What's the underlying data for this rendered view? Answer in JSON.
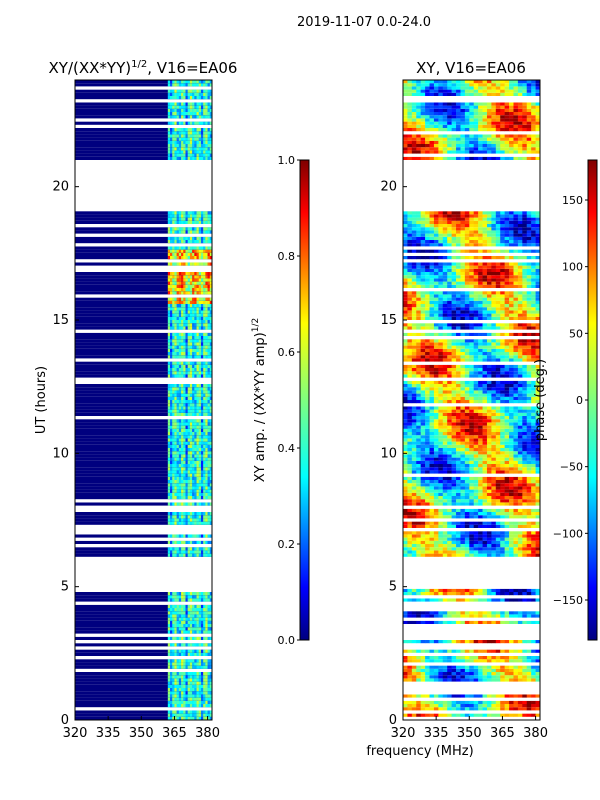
{
  "figure": {
    "suptitle": "2019-11-07 0.0-24.0",
    "common_xlabel": "frequency (MHz)"
  },
  "colors": {
    "jet": [
      "#00007f",
      "#0000ff",
      "#007fff",
      "#00ffff",
      "#7fff7f",
      "#ffff00",
      "#ff7f00",
      "#ff0000",
      "#7f0000"
    ],
    "background_band": "#00007f",
    "gap": "#ffffff"
  },
  "chart_data": [
    {
      "type": "heatmap",
      "title": "XY/(XX*YY)^1/2, V16=EA06",
      "title_main": "XY/(XX*YY)",
      "title_sup": "1/2",
      "title_tail": ", V16=EA06",
      "xlabel": "",
      "ylabel": "UT (hours)",
      "xlim": [
        320,
        382
      ],
      "ylim": [
        0,
        24
      ],
      "xticks": [
        "320",
        "335",
        "350",
        "365",
        "380"
      ],
      "yticks": [
        "0",
        "5",
        "10",
        "15",
        "20"
      ],
      "colorbar": {
        "label_main": "XY amp. / (XX*YY amp)",
        "label_sup": "1/2",
        "range": [
          0.0,
          1.0
        ],
        "ticks": [
          "0.0",
          "0.2",
          "0.4",
          "0.6",
          "0.8",
          "1.0"
        ]
      },
      "data_gaps_hours": [
        [
          19.0,
          20.9
        ],
        [
          4.9,
          6.0
        ],
        [
          6.9,
          7.3
        ]
      ],
      "active_freq_range_mhz": [
        362,
        381
      ],
      "peak_amplitude_region": {
        "freq_mhz": [
          362,
          381
        ],
        "hours": [
          15.5,
          17.6
        ],
        "value": 0.9
      }
    },
    {
      "type": "heatmap",
      "title": "XY, V16=EA06",
      "xlabel": "frequency (MHz)",
      "ylabel": "",
      "xlim": [
        320,
        382
      ],
      "ylim": [
        0,
        24
      ],
      "xticks": [
        "320",
        "335",
        "350",
        "365",
        "380"
      ],
      "yticks": [
        "0",
        "5",
        "10",
        "15",
        "20"
      ],
      "colorbar": {
        "label": "phase (deg.)",
        "range": [
          -180,
          180
        ],
        "ticks": [
          "-150",
          "-100",
          "-50",
          "0",
          "50",
          "100",
          "150"
        ]
      },
      "data_gaps_hours": [
        [
          19.0,
          20.9
        ],
        [
          4.9,
          6.0
        ]
      ]
    }
  ]
}
